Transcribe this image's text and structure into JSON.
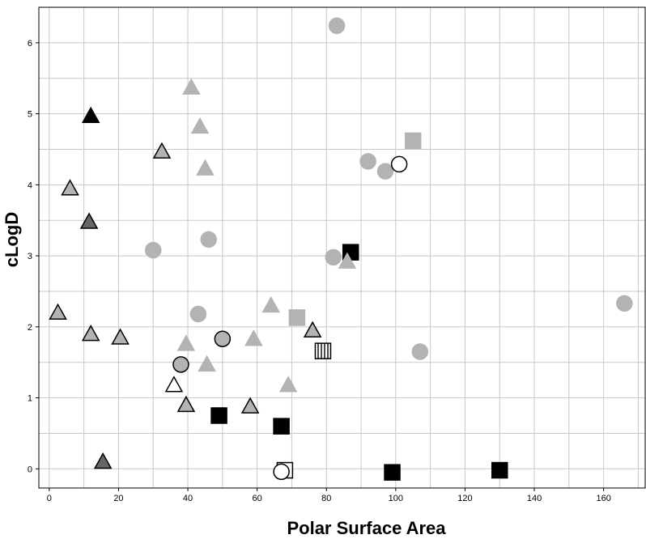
{
  "chart_data": {
    "type": "scatter",
    "title": "",
    "xlabel": "Polar Surface Area",
    "ylabel": "cLogD",
    "xlim": [
      -3,
      172
    ],
    "ylim": [
      -0.27,
      6.5
    ],
    "xticks": [
      0,
      20,
      40,
      60,
      80,
      100,
      120,
      140,
      160
    ],
    "yticks": [
      0,
      1,
      2,
      3,
      4,
      5,
      6
    ],
    "grid": true,
    "legend": "none",
    "points": [
      {
        "x": 83,
        "y": 6.24,
        "shape": "circle",
        "fill": "#b3b3b3",
        "stroke": "#b3b3b3"
      },
      {
        "x": 92,
        "y": 4.33,
        "shape": "circle",
        "fill": "#b3b3b3",
        "stroke": "#b3b3b3"
      },
      {
        "x": 97,
        "y": 4.19,
        "shape": "circle",
        "fill": "#b3b3b3",
        "stroke": "#b3b3b3"
      },
      {
        "x": 101,
        "y": 4.29,
        "shape": "circle",
        "fill": "#ffffff",
        "stroke": "#000000"
      },
      {
        "x": 105,
        "y": 4.62,
        "shape": "square",
        "fill": "#b3b3b3",
        "stroke": "#b3b3b3"
      },
      {
        "x": 87,
        "y": 3.05,
        "shape": "square",
        "fill": "#000000",
        "stroke": "#000000"
      },
      {
        "x": 82,
        "y": 2.98,
        "shape": "circle",
        "fill": "#b3b3b3",
        "stroke": "#b3b3b3"
      },
      {
        "x": 86,
        "y": 2.92,
        "shape": "triangle",
        "fill": "#b3b3b3",
        "stroke": "#b3b3b3"
      },
      {
        "x": 166,
        "y": 2.33,
        "shape": "circle",
        "fill": "#b3b3b3",
        "stroke": "#b3b3b3"
      },
      {
        "x": 107,
        "y": 1.65,
        "shape": "circle",
        "fill": "#b3b3b3",
        "stroke": "#b3b3b3"
      },
      {
        "x": 79,
        "y": 1.66,
        "shape": "striped-square",
        "fill": "#ffffff",
        "stroke": "#000000"
      },
      {
        "x": 71.5,
        "y": 2.13,
        "shape": "square",
        "fill": "#b3b3b3",
        "stroke": "#b3b3b3"
      },
      {
        "x": 76,
        "y": 1.95,
        "shape": "triangle",
        "fill": "#b3b3b3",
        "stroke": "#000000"
      },
      {
        "x": 64,
        "y": 2.3,
        "shape": "triangle",
        "fill": "#b3b3b3",
        "stroke": "#b3b3b3"
      },
      {
        "x": 69,
        "y": 1.18,
        "shape": "triangle",
        "fill": "#b3b3b3",
        "stroke": "#b3b3b3"
      },
      {
        "x": 59,
        "y": 1.83,
        "shape": "triangle",
        "fill": "#b3b3b3",
        "stroke": "#b3b3b3"
      },
      {
        "x": 58,
        "y": 0.88,
        "shape": "triangle",
        "fill": "#b3b3b3",
        "stroke": "#000000"
      },
      {
        "x": 67,
        "y": 0.6,
        "shape": "square",
        "fill": "#000000",
        "stroke": "#000000"
      },
      {
        "x": 49,
        "y": 0.75,
        "shape": "square",
        "fill": "#000000",
        "stroke": "#000000"
      },
      {
        "x": 68,
        "y": -0.02,
        "shape": "square",
        "fill": "#ffffff",
        "stroke": "#000000"
      },
      {
        "x": 67,
        "y": -0.04,
        "shape": "circle",
        "fill": "#ffffff",
        "stroke": "#000000"
      },
      {
        "x": 99,
        "y": -0.05,
        "shape": "square",
        "fill": "#000000",
        "stroke": "#000000"
      },
      {
        "x": 130,
        "y": -0.02,
        "shape": "square",
        "fill": "#000000",
        "stroke": "#000000"
      },
      {
        "x": 41,
        "y": 5.37,
        "shape": "triangle",
        "fill": "#b3b3b3",
        "stroke": "#b3b3b3"
      },
      {
        "x": 43.5,
        "y": 4.82,
        "shape": "triangle",
        "fill": "#b3b3b3",
        "stroke": "#b3b3b3"
      },
      {
        "x": 45,
        "y": 4.23,
        "shape": "triangle",
        "fill": "#b3b3b3",
        "stroke": "#b3b3b3"
      },
      {
        "x": 32.5,
        "y": 4.47,
        "shape": "triangle",
        "fill": "#b3b3b3",
        "stroke": "#000000"
      },
      {
        "x": 12,
        "y": 4.97,
        "shape": "triangle",
        "fill": "#000000",
        "stroke": "#000000"
      },
      {
        "x": 6,
        "y": 3.95,
        "shape": "triangle",
        "fill": "#b3b3b3",
        "stroke": "#000000"
      },
      {
        "x": 11.5,
        "y": 3.48,
        "shape": "triangle",
        "fill": "#666666",
        "stroke": "#000000"
      },
      {
        "x": 46,
        "y": 3.23,
        "shape": "circle",
        "fill": "#b3b3b3",
        "stroke": "#b3b3b3"
      },
      {
        "x": 30,
        "y": 3.08,
        "shape": "circle",
        "fill": "#b3b3b3",
        "stroke": "#b3b3b3"
      },
      {
        "x": 43,
        "y": 2.18,
        "shape": "circle",
        "fill": "#b3b3b3",
        "stroke": "#b3b3b3"
      },
      {
        "x": 2.5,
        "y": 2.2,
        "shape": "triangle",
        "fill": "#b3b3b3",
        "stroke": "#000000"
      },
      {
        "x": 12,
        "y": 1.9,
        "shape": "triangle",
        "fill": "#b3b3b3",
        "stroke": "#000000"
      },
      {
        "x": 20.5,
        "y": 1.85,
        "shape": "triangle",
        "fill": "#b3b3b3",
        "stroke": "#000000"
      },
      {
        "x": 39.5,
        "y": 1.76,
        "shape": "triangle",
        "fill": "#b3b3b3",
        "stroke": "#b3b3b3"
      },
      {
        "x": 50,
        "y": 1.83,
        "shape": "circle",
        "fill": "#b3b3b3",
        "stroke": "#000000"
      },
      {
        "x": 45.5,
        "y": 1.47,
        "shape": "triangle",
        "fill": "#b3b3b3",
        "stroke": "#b3b3b3"
      },
      {
        "x": 38,
        "y": 1.47,
        "shape": "circle",
        "fill": "#b3b3b3",
        "stroke": "#000000"
      },
      {
        "x": 36,
        "y": 1.18,
        "shape": "triangle",
        "fill": "#ffffff",
        "stroke": "#000000"
      },
      {
        "x": 39.5,
        "y": 0.9,
        "shape": "triangle",
        "fill": "#b3b3b3",
        "stroke": "#000000"
      },
      {
        "x": 15.5,
        "y": 0.1,
        "shape": "triangle",
        "fill": "#666666",
        "stroke": "#000000"
      }
    ]
  }
}
